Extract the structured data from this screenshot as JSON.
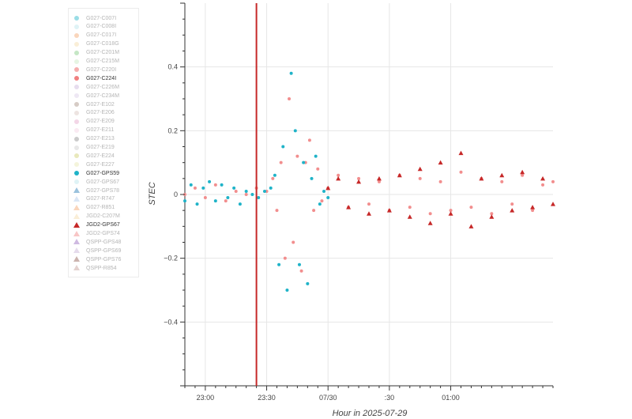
{
  "legend": [
    {
      "label": "G027-C007I",
      "color": "#1fb3c8",
      "shape": "circle",
      "active": false
    },
    {
      "label": "G027-C008I",
      "color": "#b9e4ea",
      "shape": "circle",
      "active": false
    },
    {
      "label": "G027-C017I",
      "color": "#f4a46a",
      "shape": "circle",
      "active": false
    },
    {
      "label": "G027-C018G",
      "color": "#f5d9a6",
      "shape": "circle",
      "active": false
    },
    {
      "label": "G027-C201M",
      "color": "#7fc97f",
      "shape": "circle",
      "active": false
    },
    {
      "label": "G027-C215M",
      "color": "#c7e9c0",
      "shape": "circle",
      "active": false
    },
    {
      "label": "G027-C220I",
      "color": "#e94c4c",
      "shape": "circle",
      "active": false
    },
    {
      "label": "G027-C224I",
      "color": "#f08080",
      "shape": "circle",
      "active": true
    },
    {
      "label": "G027-C226M",
      "color": "#c9b3d9",
      "shape": "circle",
      "active": false
    },
    {
      "label": "G027-C234M",
      "color": "#d9cce6",
      "shape": "circle",
      "active": false
    },
    {
      "label": "G027-E102",
      "color": "#a58b7f",
      "shape": "circle",
      "active": false
    },
    {
      "label": "G027-E206",
      "color": "#d7c3bc",
      "shape": "circle",
      "active": false
    },
    {
      "label": "G027-E209",
      "color": "#e5a3c9",
      "shape": "circle",
      "active": false
    },
    {
      "label": "G027-E211",
      "color": "#f3d1e3",
      "shape": "circle",
      "active": false
    },
    {
      "label": "G027-E213",
      "color": "#8c8c8c",
      "shape": "circle",
      "active": false
    },
    {
      "label": "G027-E219",
      "color": "#cccccc",
      "shape": "circle",
      "active": false
    },
    {
      "label": "G027-E224",
      "color": "#cfcf6a",
      "shape": "circle",
      "active": false
    },
    {
      "label": "G027-E227",
      "color": "#e6e6b0",
      "shape": "circle",
      "active": false
    },
    {
      "label": "G027-GPS59",
      "color": "#1fb3c8",
      "shape": "circle",
      "active": true
    },
    {
      "label": "G027-GPS67",
      "color": "#b9e4ea",
      "shape": "circle",
      "active": false
    },
    {
      "label": "G027-GPS78",
      "color": "#1f77b4",
      "shape": "triangle",
      "active": false
    },
    {
      "label": "G027-R747",
      "color": "#aec7e8",
      "shape": "triangle",
      "active": false
    },
    {
      "label": "G027-R851",
      "color": "#f4a46a",
      "shape": "triangle",
      "active": false
    },
    {
      "label": "JGD2-C207M",
      "color": "#f5d9a6",
      "shape": "triangle",
      "active": false
    },
    {
      "label": "JGD2-GPS67",
      "color": "#c62828",
      "shape": "triangle",
      "active": true
    },
    {
      "label": "JGD2-GPS74",
      "color": "#f08080",
      "shape": "triangle",
      "active": false
    },
    {
      "label": "QSPP-GPS48",
      "color": "#9467bd",
      "shape": "triangle",
      "active": false
    },
    {
      "label": "QSPP-GPS69",
      "color": "#c5b0d5",
      "shape": "triangle",
      "active": false
    },
    {
      "label": "QSPP-GPS76",
      "color": "#8c564b",
      "shape": "triangle",
      "active": false
    },
    {
      "label": "QSPP-R854",
      "color": "#c49c94",
      "shape": "triangle",
      "active": false
    }
  ],
  "chart_data": {
    "type": "scatter",
    "xlabel": "Hour in 2025-07-29",
    "ylabel": "STEC",
    "x_unit": "minutes after 22:50 on 2025-07-29",
    "xlim": [
      0,
      180
    ],
    "ylim": [
      -0.6,
      0.6
    ],
    "x_ticks": [
      {
        "value": 10,
        "label": "23:00"
      },
      {
        "value": 40,
        "label": "23:30"
      },
      {
        "value": 70,
        "label": "07/30"
      },
      {
        "value": 100,
        "label": ":30"
      },
      {
        "value": 130,
        "label": "01:00"
      }
    ],
    "y_ticks": [
      {
        "value": -0.4,
        "label": "−0.4"
      },
      {
        "value": -0.2,
        "label": "−0.2"
      },
      {
        "value": 0,
        "label": "0"
      },
      {
        "value": 0.2,
        "label": "0.2"
      },
      {
        "value": 0.4,
        "label": "0.4"
      }
    ],
    "grid": true,
    "vline": {
      "x": 35,
      "color": "#c62828"
    },
    "series": [
      {
        "name": "G027-C224I",
        "color": "#f28e8e",
        "marker": "circle",
        "x": [
          0,
          5,
          10,
          15,
          20,
          25,
          30,
          35,
          40,
          43,
          45,
          47,
          49,
          51,
          53,
          55,
          57,
          59,
          61,
          63,
          65,
          67,
          70,
          75,
          80,
          85,
          90,
          95,
          100,
          105,
          110,
          115,
          120,
          125,
          130,
          135,
          140,
          145,
          150,
          155,
          160,
          165,
          170,
          175,
          180
        ],
        "y": [
          0,
          0.02,
          -0.01,
          0.03,
          -0.02,
          0.01,
          0.0,
          0.02,
          0.01,
          0.05,
          -0.05,
          0.1,
          -0.2,
          0.3,
          -0.15,
          0.12,
          -0.24,
          0.1,
          0.17,
          -0.05,
          0.08,
          -0.02,
          0.02,
          0.06,
          -0.04,
          0.05,
          -0.03,
          0.04,
          -0.05,
          0.06,
          -0.04,
          0.05,
          -0.06,
          0.04,
          -0.05,
          0.07,
          -0.04,
          0.05,
          -0.06,
          0.04,
          -0.03,
          0.06,
          -0.05,
          0.03,
          0.04
        ]
      },
      {
        "name": "G027-GPS59",
        "color": "#1fb3c8",
        "marker": "circle",
        "x": [
          0,
          3,
          6,
          9,
          12,
          15,
          18,
          21,
          24,
          27,
          30,
          33,
          36,
          39,
          42,
          44,
          46,
          48,
          50,
          52,
          54,
          56,
          58,
          60,
          62,
          64,
          66,
          68,
          70
        ],
        "y": [
          -0.02,
          0.03,
          -0.03,
          0.02,
          0.04,
          -0.02,
          0.03,
          -0.01,
          0.02,
          -0.03,
          0.01,
          0.0,
          -0.01,
          0.01,
          0.02,
          0.06,
          -0.22,
          0.15,
          -0.3,
          0.38,
          0.2,
          -0.22,
          0.1,
          -0.28,
          0.05,
          0.12,
          -0.03,
          0.01,
          -0.01
        ]
      },
      {
        "name": "JGD2-GPS67",
        "color": "#c62828",
        "marker": "triangle",
        "x": [
          70,
          75,
          80,
          85,
          90,
          95,
          100,
          105,
          110,
          115,
          120,
          125,
          130,
          135,
          140,
          145,
          150,
          155,
          160,
          165,
          170,
          175,
          180
        ],
        "y": [
          0.02,
          0.05,
          -0.04,
          0.04,
          -0.06,
          0.05,
          -0.05,
          0.06,
          -0.07,
          0.08,
          -0.09,
          0.1,
          -0.06,
          0.13,
          -0.1,
          0.05,
          -0.07,
          0.06,
          -0.05,
          0.07,
          -0.04,
          0.05,
          -0.03
        ]
      }
    ]
  }
}
